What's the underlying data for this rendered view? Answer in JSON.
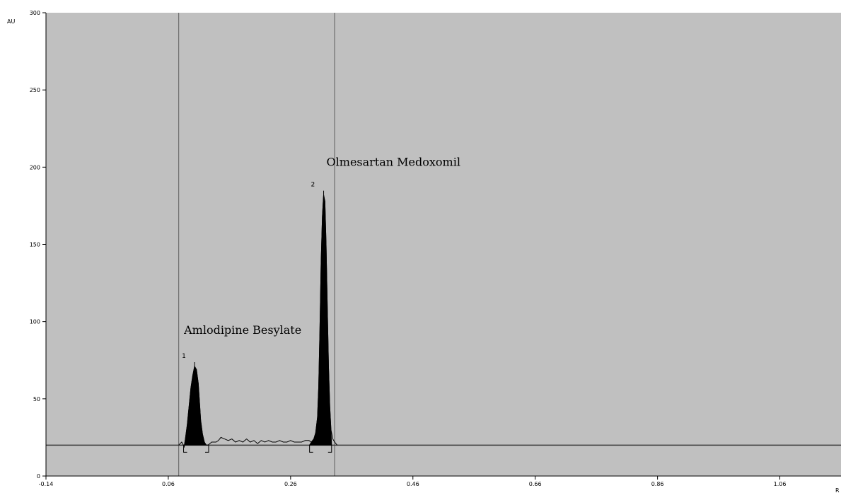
{
  "chart_data": {
    "type": "line",
    "title": "",
    "ylabel": "AU",
    "xlabel": "",
    "x_unit_label": "R",
    "xlim": [
      -0.14,
      1.16
    ],
    "ylim": [
      0,
      300
    ],
    "x_ticks": [
      -0.14,
      0.06,
      0.26,
      0.46,
      0.66,
      0.86,
      1.06
    ],
    "x_tick_labels": [
      "-0.14",
      "0.06",
      "0.26",
      "0.46",
      "0.66",
      "0.86",
      "1.06"
    ],
    "y_ticks": [
      0,
      50,
      100,
      150,
      200,
      250,
      300
    ],
    "y_tick_labels": [
      "0",
      "50",
      "100",
      "150",
      "200",
      "250",
      "300"
    ],
    "baseline_au": 20,
    "vertical_markers_x": [
      0.077,
      0.332
    ],
    "series": [
      {
        "x": [
          0.077,
          0.082,
          0.086,
          0.088,
          0.091,
          0.094,
          0.097,
          0.1,
          0.103,
          0.106,
          0.109,
          0.111,
          0.113,
          0.116,
          0.119,
          0.122,
          0.125,
          0.128,
          0.131,
          0.134,
          0.138,
          0.142,
          0.146,
          0.152,
          0.158,
          0.164,
          0.17,
          0.176,
          0.182,
          0.188,
          0.194,
          0.2,
          0.206,
          0.212,
          0.218,
          0.224,
          0.23,
          0.236,
          0.242,
          0.248,
          0.254,
          0.26,
          0.266,
          0.272,
          0.278,
          0.284,
          0.29,
          0.294,
          0.298,
          0.301,
          0.304,
          0.306,
          0.308,
          0.31,
          0.312,
          0.314,
          0.316,
          0.318,
          0.32,
          0.322,
          0.324,
          0.326,
          0.329,
          0.332,
          0.336
        ],
        "y": [
          20,
          22,
          19,
          24,
          33,
          45,
          57,
          65,
          71,
          69,
          60,
          48,
          36,
          27,
          22,
          20,
          20,
          21,
          22,
          22,
          22,
          23,
          25,
          24,
          23,
          24,
          22,
          23,
          22,
          24,
          22,
          23,
          21,
          23,
          22,
          23,
          22,
          22,
          23,
          22,
          22,
          23,
          22,
          22,
          22,
          23,
          23,
          22,
          24,
          28,
          38,
          58,
          95,
          140,
          168,
          182,
          178,
          150,
          110,
          70,
          45,
          30,
          24,
          22,
          20
        ]
      }
    ],
    "peaks": [
      {
        "number": "1",
        "name": "Amlodipine Besylate",
        "x": 0.103,
        "y": 71,
        "start": 0.085,
        "end": 0.126
      },
      {
        "number": "2",
        "name": "Olmesartan Medoxomil",
        "x": 0.314,
        "y": 182,
        "start": 0.291,
        "end": 0.327
      }
    ],
    "colors": {
      "plot_background": "#c0c0c0",
      "trace": "#000000",
      "peak_fill": "#000000",
      "axis": "#000000",
      "marker": "#6e6e6e",
      "baseline": "#3c3c3c"
    },
    "grid": false,
    "legend": "none"
  }
}
